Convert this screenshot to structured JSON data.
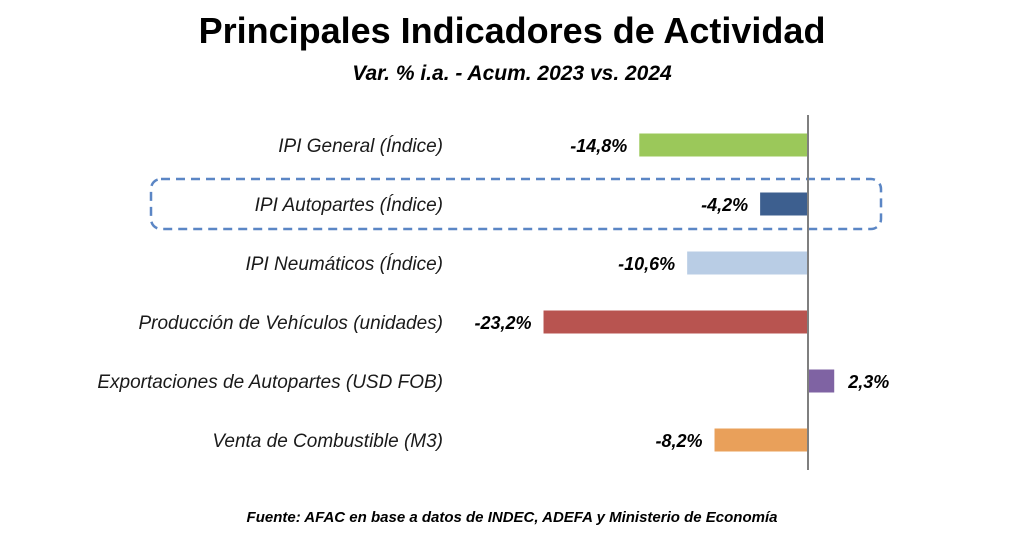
{
  "title": "Principales Indicadores de Actividad",
  "subtitle": "Var. % i.a. - Acum. 2023 vs. 2024",
  "source": "Fuente: AFAC en base a datos de INDEC, ADEFA y Ministerio de Economía",
  "highlight_category": "IPI Autopartes (Índice)",
  "chart_data": {
    "type": "bar",
    "orientation": "horizontal",
    "categories": [
      "IPI General (Índice)",
      "IPI Autopartes (Índice)",
      "IPI Neumáticos (Índice)",
      "Producción de Vehículos (unidades)",
      "Exportaciones de Autopartes (USD FOB)",
      "Venta de Combustible (M3)"
    ],
    "values": [
      -14.8,
      -4.2,
      -10.6,
      -23.2,
      2.3,
      -8.2
    ],
    "value_labels": [
      "-14,8%",
      "-4,2%",
      "-10,6%",
      "-23,2%",
      "2,3%",
      "-8,2%"
    ],
    "colors": [
      "#9bc85a",
      "#3d5f8f",
      "#b9cde5",
      "#b85450",
      "#7f63a3",
      "#e9a05a"
    ],
    "grid": false,
    "legend": "none"
  }
}
